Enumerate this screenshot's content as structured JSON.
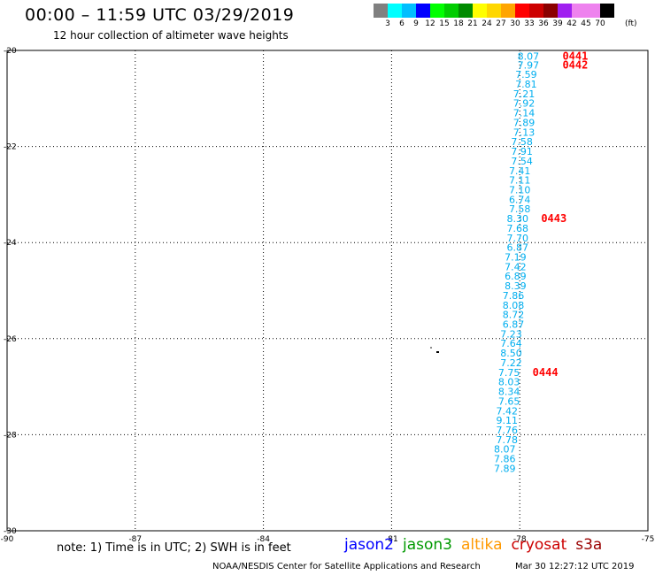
{
  "header": {
    "title": "00:00 – 11:59 UTC 03/29/2019",
    "subtitle": "12 hour collection of altimeter wave heights"
  },
  "colorbar": {
    "colors": [
      "#808080",
      "#00ffff",
      "#00bfff",
      "#0000ff",
      "#00ff00",
      "#00cd00",
      "#008b00",
      "#ffff00",
      "#ffd700",
      "#ffa500",
      "#ff0000",
      "#cd0000",
      "#8b0000",
      "#a020f0",
      "#ee82ee",
      "#ee82ee",
      "#000000"
    ],
    "ticks": [
      "3",
      "6",
      "9",
      "12",
      "15",
      "18",
      "21",
      "24",
      "27",
      "30",
      "33",
      "36",
      "39",
      "42",
      "45",
      "70"
    ],
    "unit": "(ft)"
  },
  "chart_data": {
    "type": "scatter",
    "title": "12 hour collection of altimeter wave heights",
    "xlabel": "",
    "ylabel": "",
    "xlim": [
      -90,
      -75
    ],
    "ylim": [
      -30,
      -20
    ],
    "x_ticks": [
      -90,
      -87,
      -84,
      -81,
      -78,
      -75
    ],
    "y_ticks": [
      -20,
      -22,
      -24,
      -26,
      -28,
      -30
    ],
    "grid": true,
    "point_color": "#00aeef",
    "time_label_color": "#ff0000",
    "series": [
      {
        "name": "cryosat",
        "points": [
          {
            "x": -77.8,
            "y": -20.12,
            "label": "8.07"
          },
          {
            "x": -77.8,
            "y": -20.3,
            "label": "7.97"
          },
          {
            "x": -77.85,
            "y": -20.5,
            "label": "7.59"
          },
          {
            "x": -77.85,
            "y": -20.7,
            "label": "7.81"
          },
          {
            "x": -77.9,
            "y": -20.9,
            "label": "7.21"
          },
          {
            "x": -77.9,
            "y": -21.1,
            "label": "7.92"
          },
          {
            "x": -77.9,
            "y": -21.3,
            "label": "7.14"
          },
          {
            "x": -77.9,
            "y": -21.5,
            "label": "7.89"
          },
          {
            "x": -77.9,
            "y": -21.7,
            "label": "7.13"
          },
          {
            "x": -77.95,
            "y": -21.9,
            "label": "7.58"
          },
          {
            "x": -77.95,
            "y": -22.1,
            "label": "7.91"
          },
          {
            "x": -77.95,
            "y": -22.3,
            "label": "7.54"
          },
          {
            "x": -78.0,
            "y": -22.5,
            "label": "7.41"
          },
          {
            "x": -78.0,
            "y": -22.7,
            "label": "7.11"
          },
          {
            "x": -78.0,
            "y": -22.9,
            "label": "7.10"
          },
          {
            "x": -78.0,
            "y": -23.1,
            "label": "6.74"
          },
          {
            "x": -78.0,
            "y": -23.3,
            "label": "7.58"
          },
          {
            "x": -78.05,
            "y": -23.5,
            "label": "8.30"
          },
          {
            "x": -78.05,
            "y": -23.7,
            "label": "7.68"
          },
          {
            "x": -78.05,
            "y": -23.9,
            "label": "7.70"
          },
          {
            "x": -78.05,
            "y": -24.1,
            "label": "6.87"
          },
          {
            "x": -78.1,
            "y": -24.3,
            "label": "7.19"
          },
          {
            "x": -78.1,
            "y": -24.5,
            "label": "7.42"
          },
          {
            "x": -78.1,
            "y": -24.7,
            "label": "6.89"
          },
          {
            "x": -78.1,
            "y": -24.9,
            "label": "8.39"
          },
          {
            "x": -78.15,
            "y": -25.1,
            "label": "7.86"
          },
          {
            "x": -78.15,
            "y": -25.3,
            "label": "8.08"
          },
          {
            "x": -78.15,
            "y": -25.5,
            "label": "8.72"
          },
          {
            "x": -78.15,
            "y": -25.7,
            "label": "6.87"
          },
          {
            "x": -78.2,
            "y": -25.9,
            "label": "7.23"
          },
          {
            "x": -78.2,
            "y": -26.1,
            "label": "7.64"
          },
          {
            "x": -78.2,
            "y": -26.3,
            "label": "8.50"
          },
          {
            "x": -78.2,
            "y": -26.5,
            "label": "7.22"
          },
          {
            "x": -78.25,
            "y": -26.7,
            "label": "7.75"
          },
          {
            "x": -78.25,
            "y": -26.9,
            "label": "8.03"
          },
          {
            "x": -78.25,
            "y": -27.1,
            "label": "8.34"
          },
          {
            "x": -78.25,
            "y": -27.3,
            "label": "7.65"
          },
          {
            "x": -78.3,
            "y": -27.5,
            "label": "7.42"
          },
          {
            "x": -78.3,
            "y": -27.7,
            "label": "9.11"
          },
          {
            "x": -78.3,
            "y": -27.9,
            "label": "7.76"
          },
          {
            "x": -78.3,
            "y": -28.1,
            "label": "7.78"
          },
          {
            "x": -78.35,
            "y": -28.3,
            "label": "8.07"
          },
          {
            "x": -78.35,
            "y": -28.5,
            "label": "7.86"
          },
          {
            "x": -78.35,
            "y": -28.7,
            "label": "7.89"
          }
        ]
      }
    ],
    "time_labels": [
      {
        "x": -77.0,
        "y": -20.12,
        "label": "0441"
      },
      {
        "x": -77.0,
        "y": -20.3,
        "label": "0442"
      },
      {
        "x": -77.5,
        "y": -23.5,
        "label": "0443"
      },
      {
        "x": -77.7,
        "y": -26.7,
        "label": "0444"
      }
    ]
  },
  "footer": {
    "note": "note: 1) Time is in UTC; 2) SWH is in feet",
    "missions": [
      {
        "name": "jason2",
        "color": "#0000ff"
      },
      {
        "name": "jason3",
        "color": "#009900"
      },
      {
        "name": "altika",
        "color": "#ff9900"
      },
      {
        "name": "cryosat",
        "color": "#cc0000"
      },
      {
        "name": "s3a",
        "color": "#990000"
      }
    ],
    "credit": "NOAA/NESDIS Center for Satellite Applications and Research",
    "generated": "Mar 30 12:27:12 UTC 2019"
  }
}
